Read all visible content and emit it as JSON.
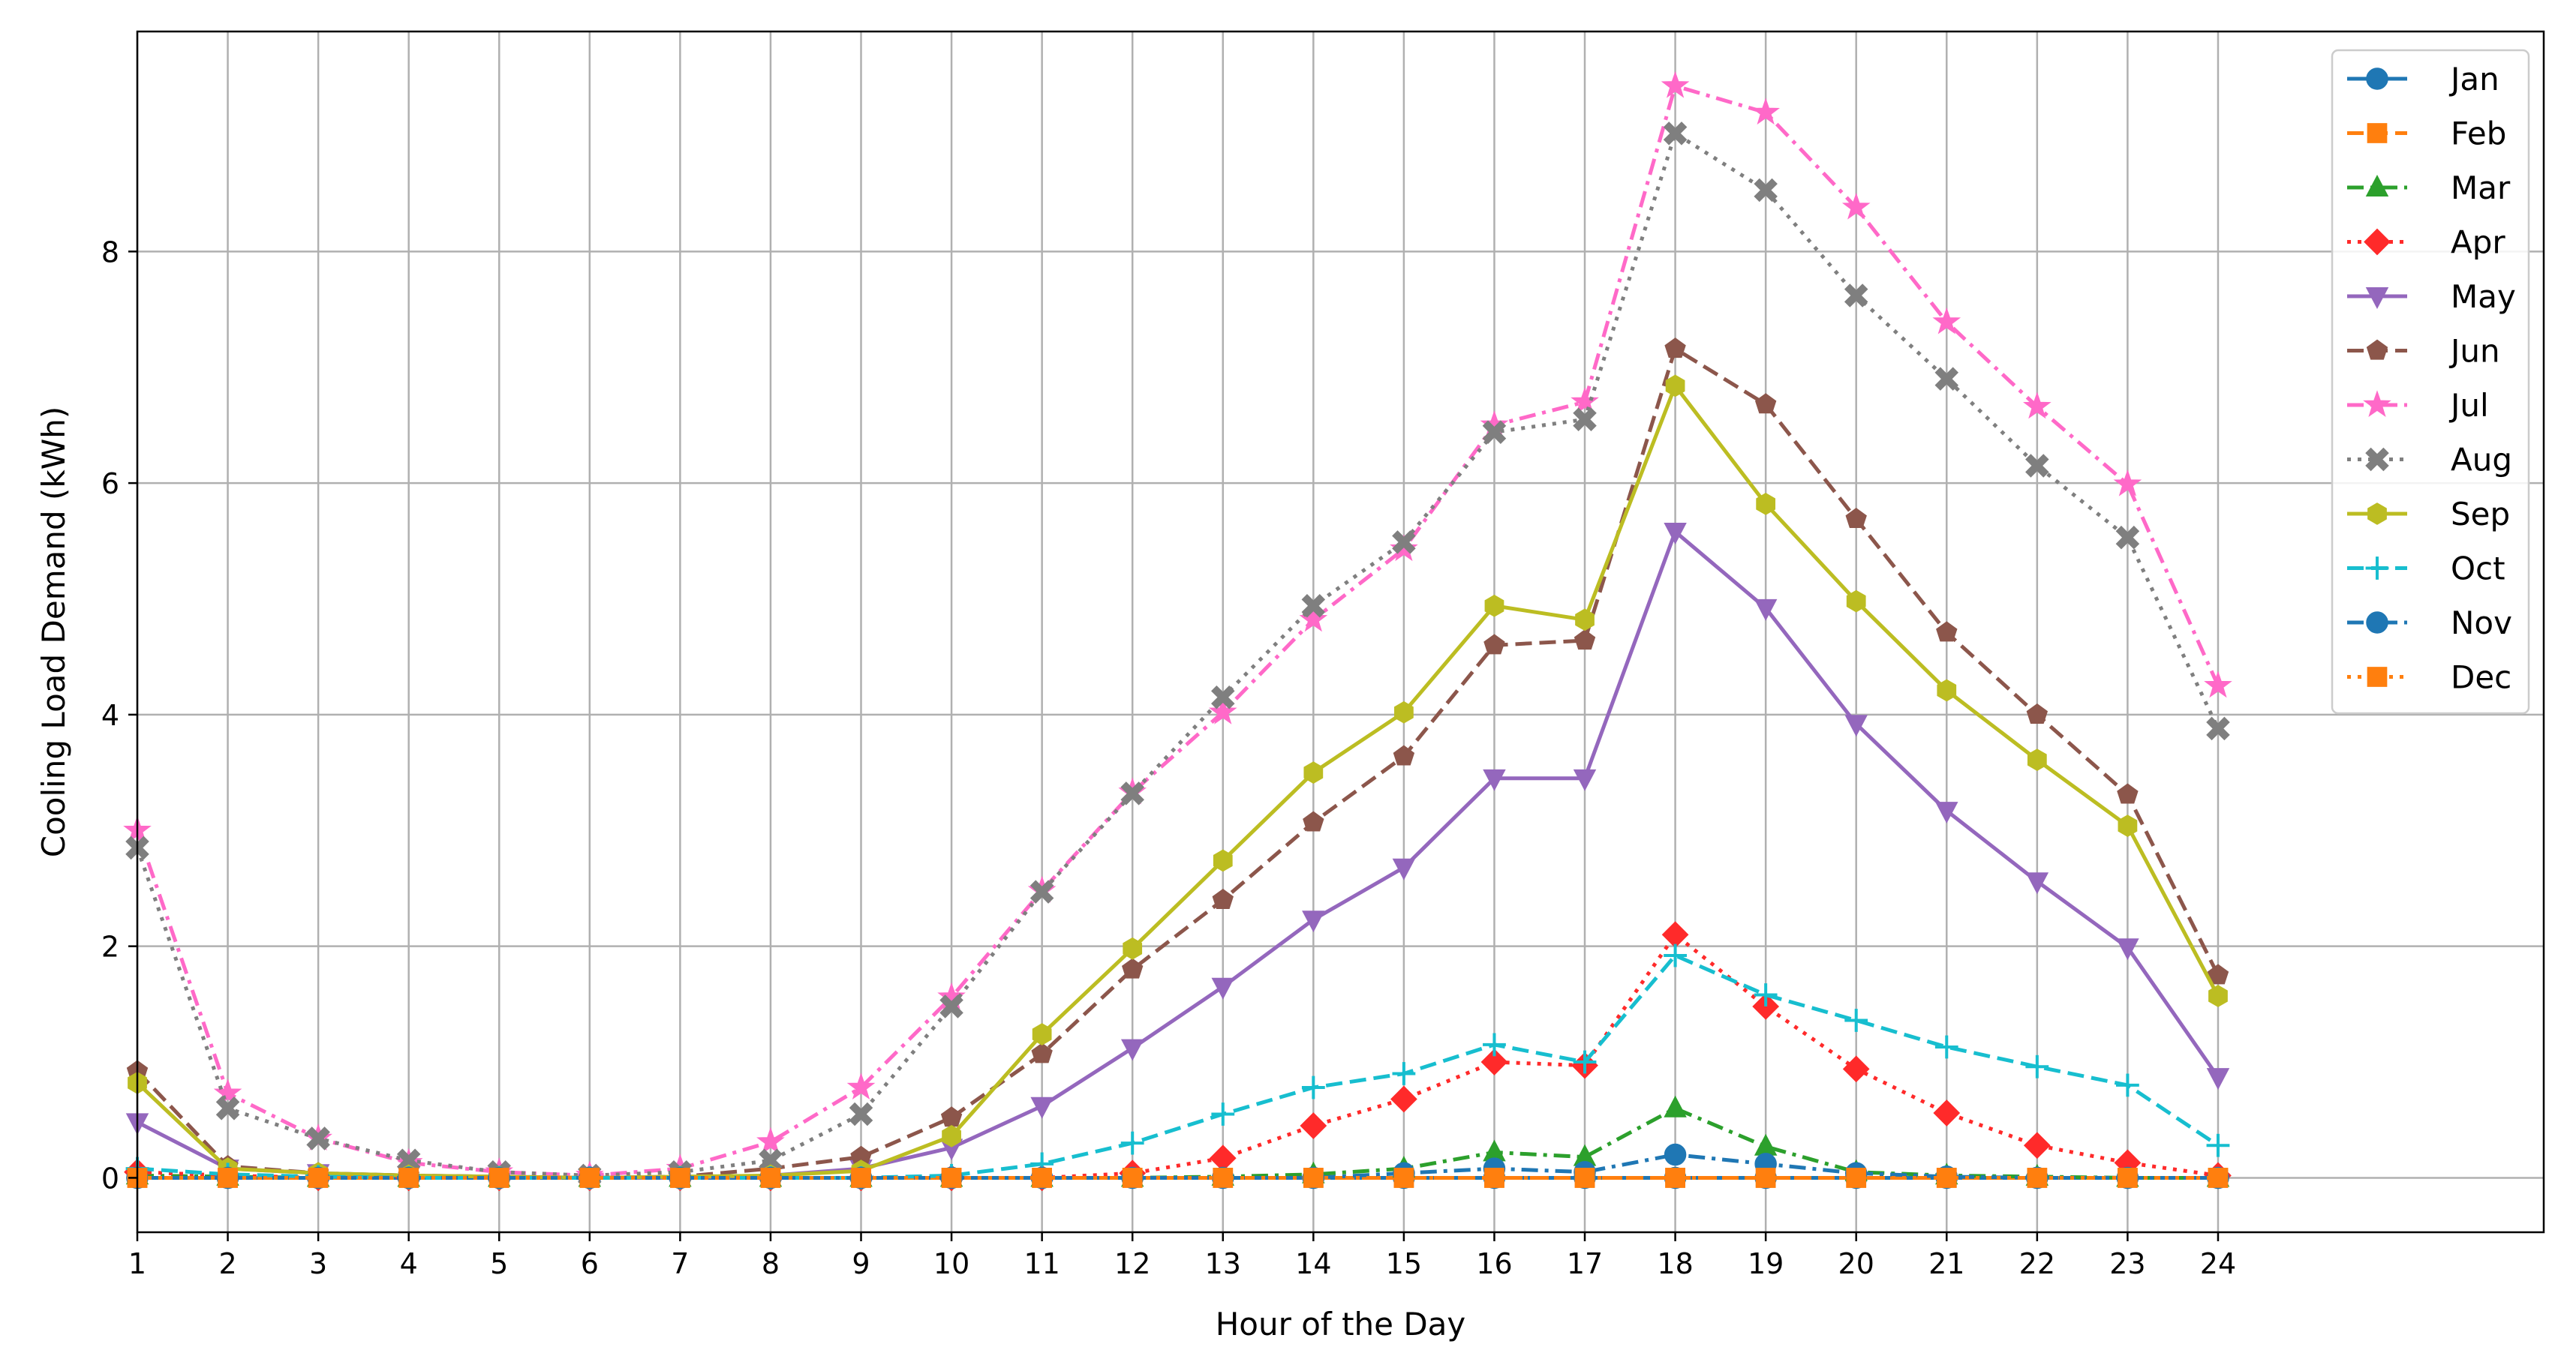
{
  "chart_data": {
    "type": "line",
    "xlabel": "Hour of the Day",
    "ylabel": "Cooling Load Demand (kWh)",
    "x": [
      1,
      2,
      3,
      4,
      5,
      6,
      7,
      8,
      9,
      10,
      11,
      12,
      13,
      14,
      15,
      16,
      17,
      18,
      19,
      20,
      21,
      22,
      23,
      24
    ],
    "xlim": [
      1,
      27.6
    ],
    "ylim": [
      -0.47,
      9.9
    ],
    "xticks": [
      "1",
      "2",
      "3",
      "4",
      "5",
      "6",
      "7",
      "8",
      "9",
      "10",
      "11",
      "12",
      "13",
      "14",
      "15",
      "16",
      "17",
      "18",
      "19",
      "20",
      "21",
      "22",
      "23",
      "24"
    ],
    "yticks": [
      0,
      2,
      4,
      6,
      8
    ],
    "grid": true,
    "legend_position": "upper right",
    "series": [
      {
        "name": "Jan",
        "color": "#1f77b4",
        "marker": "circle",
        "linestyle": "solid",
        "values": [
          0,
          0,
          0,
          0,
          0,
          0,
          0,
          0,
          0,
          0,
          0,
          0,
          0,
          0,
          0,
          0,
          0,
          0,
          0,
          0,
          0,
          0,
          0,
          0
        ]
      },
      {
        "name": "Feb",
        "color": "#ff7f0e",
        "marker": "square",
        "linestyle": "dashed",
        "values": [
          0,
          0,
          0,
          0,
          0,
          0,
          0,
          0,
          0,
          0,
          0,
          0,
          0,
          0,
          0,
          0,
          0,
          0,
          0,
          0,
          0,
          0,
          0,
          0
        ]
      },
      {
        "name": "Mar",
        "color": "#2ca02c",
        "marker": "triangle-up",
        "linestyle": "dashdot",
        "values": [
          0.02,
          0.01,
          0,
          0,
          0,
          0,
          0,
          0,
          0,
          0,
          0,
          0,
          0.01,
          0.03,
          0.08,
          0.22,
          0.18,
          0.6,
          0.27,
          0.05,
          0.02,
          0.01,
          0,
          0
        ]
      },
      {
        "name": "Apr",
        "color": "#ff2a2a",
        "marker": "diamond",
        "linestyle": "dotted",
        "values": [
          0.05,
          0.02,
          0,
          0,
          0,
          0,
          0,
          0,
          0,
          0,
          0,
          0.04,
          0.17,
          0.45,
          0.68,
          1.0,
          0.97,
          2.1,
          1.48,
          0.94,
          0.56,
          0.28,
          0.13,
          0.02
        ]
      },
      {
        "name": "May",
        "color": "#9467bd",
        "marker": "triangle-down",
        "linestyle": "solid",
        "values": [
          0.48,
          0.08,
          0.04,
          0.02,
          0.01,
          0,
          0,
          0.02,
          0.08,
          0.26,
          0.62,
          1.12,
          1.65,
          2.23,
          2.68,
          3.45,
          3.45,
          5.58,
          4.92,
          3.92,
          3.17,
          2.56,
          1.99,
          0.87
        ]
      },
      {
        "name": "Jun",
        "color": "#8c564b",
        "marker": "pentagon",
        "linestyle": "dashed",
        "values": [
          0.92,
          0.1,
          0.04,
          0.02,
          0.01,
          0,
          0.01,
          0.08,
          0.18,
          0.52,
          1.07,
          1.8,
          2.4,
          3.07,
          3.64,
          4.6,
          4.64,
          7.16,
          6.68,
          5.69,
          4.71,
          4.0,
          3.31,
          1.75
        ]
      },
      {
        "name": "Jul",
        "color": "#ff69c8",
        "marker": "star",
        "linestyle": "dashdot",
        "values": [
          3.0,
          0.73,
          0.34,
          0.13,
          0.05,
          0.02,
          0.08,
          0.31,
          0.78,
          1.56,
          2.48,
          3.33,
          4.02,
          4.82,
          5.43,
          6.5,
          6.7,
          9.43,
          9.2,
          8.38,
          7.39,
          6.66,
          5.99,
          4.25
        ]
      },
      {
        "name": "Aug",
        "color": "#7f7f7f",
        "marker": "x",
        "linestyle": "dotted",
        "values": [
          2.85,
          0.6,
          0.34,
          0.15,
          0.05,
          0.02,
          0.05,
          0.15,
          0.55,
          1.48,
          2.47,
          3.32,
          4.15,
          4.94,
          5.49,
          6.44,
          6.55,
          9.02,
          8.53,
          7.62,
          6.9,
          6.15,
          5.53,
          3.88
        ]
      },
      {
        "name": "Sep",
        "color": "#bcbd22",
        "marker": "hexagon",
        "linestyle": "solid",
        "values": [
          0.82,
          0.08,
          0.04,
          0.02,
          0.01,
          0,
          0.01,
          0.02,
          0.06,
          0.36,
          1.24,
          1.98,
          2.74,
          3.5,
          4.02,
          4.94,
          4.82,
          6.84,
          5.82,
          4.98,
          4.21,
          3.61,
          3.04,
          1.57
        ]
      },
      {
        "name": "Oct",
        "color": "#17becf",
        "marker": "plus",
        "linestyle": "dashed",
        "values": [
          0.08,
          0.03,
          0.01,
          0,
          0,
          0,
          0,
          0,
          0,
          0.02,
          0.12,
          0.3,
          0.55,
          0.78,
          0.9,
          1.15,
          1.0,
          1.92,
          1.58,
          1.36,
          1.13,
          0.96,
          0.8,
          0.28
        ]
      },
      {
        "name": "Nov",
        "color": "#1f77b4",
        "marker": "circle",
        "linestyle": "dashdot",
        "values": [
          0,
          0,
          0,
          0,
          0,
          0,
          0,
          0,
          0,
          0,
          0,
          0,
          0,
          0,
          0.04,
          0.08,
          0.05,
          0.2,
          0.12,
          0.04,
          0.01,
          0,
          0,
          0
        ]
      },
      {
        "name": "Dec",
        "color": "#ff7f0e",
        "marker": "square",
        "linestyle": "dotted",
        "values": [
          0,
          0,
          0,
          0,
          0,
          0,
          0,
          0,
          0,
          0,
          0,
          0,
          0,
          0,
          0,
          0,
          0,
          0,
          0,
          0,
          0,
          0,
          0,
          0
        ]
      }
    ]
  }
}
